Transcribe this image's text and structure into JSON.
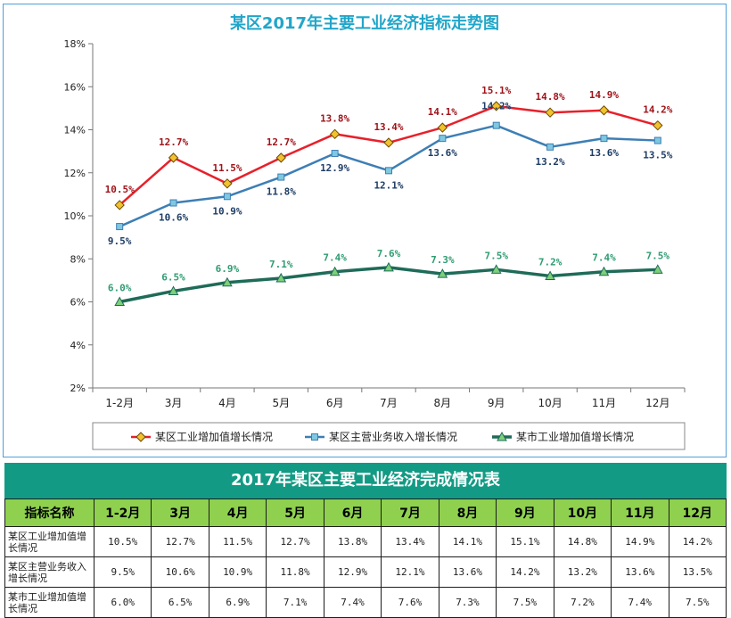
{
  "colors": {
    "industrial_district": "#e8202a",
    "business_income": "#3d7eb5",
    "industrial_city": "#1e6b58",
    "title": "#21a6c9",
    "table_title_bg": "#139a84",
    "header_bg": "#8fd14f",
    "marker_diamond": "#f2c12e"
  },
  "chart_data": {
    "type": "line",
    "title": "某区2017年主要工业经济指标走势图",
    "categories": [
      "1-2月",
      "3月",
      "4月",
      "5月",
      "6月",
      "7月",
      "8月",
      "9月",
      "10月",
      "11月",
      "12月"
    ],
    "yticks": [
      "2%",
      "4%",
      "6%",
      "8%",
      "10%",
      "12%",
      "14%",
      "16%",
      "18%"
    ],
    "ylim": [
      2,
      18
    ],
    "series": [
      {
        "name": "某区工业增加值增长情况",
        "values": [
          10.5,
          12.7,
          11.5,
          12.7,
          13.8,
          13.4,
          14.1,
          15.1,
          14.8,
          14.9,
          14.2
        ],
        "labels": [
          "10.5%",
          "12.7%",
          "11.5%",
          "12.7%",
          "13.8%",
          "13.4%",
          "14.1%",
          "15.1%",
          "14.8%",
          "14.9%",
          "14.2%"
        ],
        "marker": "diamond"
      },
      {
        "name": "某区主营业务收入增长情况",
        "values": [
          9.5,
          10.6,
          10.9,
          11.8,
          12.9,
          12.1,
          13.6,
          14.2,
          13.2,
          13.6,
          13.5
        ],
        "labels": [
          "9.5%",
          "10.6%",
          "10.9%",
          "11.8%",
          "12.9%",
          "12.1%",
          "13.6%",
          "14.2%",
          "13.2%",
          "13.6%",
          "13.5%"
        ],
        "marker": "square"
      },
      {
        "name": "某市工业增加值增长情况",
        "values": [
          6.0,
          6.5,
          6.9,
          7.1,
          7.4,
          7.6,
          7.3,
          7.5,
          7.2,
          7.4,
          7.5
        ],
        "labels": [
          "6.0%",
          "6.5%",
          "6.9%",
          "7.1%",
          "7.4%",
          "7.6%",
          "7.3%",
          "7.5%",
          "7.2%",
          "7.4%",
          "7.5%"
        ],
        "marker": "triangle"
      }
    ],
    "legend": "bottom",
    "grid": false
  },
  "table": {
    "title": "2017年某区主要工业经济完成情况表",
    "header_first": "指标名称",
    "months": [
      "1-2月",
      "3月",
      "4月",
      "5月",
      "6月",
      "7月",
      "8月",
      "9月",
      "10月",
      "11月",
      "12月"
    ],
    "rows": [
      {
        "name": "某区工业增加值增长情况",
        "values": [
          "10.5%",
          "12.7%",
          "11.5%",
          "12.7%",
          "13.8%",
          "13.4%",
          "14.1%",
          "15.1%",
          "14.8%",
          "14.9%",
          "14.2%"
        ]
      },
      {
        "name": "某区主营业务收入增长情况",
        "values": [
          "9.5%",
          "10.6%",
          "10.9%",
          "11.8%",
          "12.9%",
          "12.1%",
          "13.6%",
          "14.2%",
          "13.2%",
          "13.6%",
          "13.5%"
        ]
      },
      {
        "name": "某市工业增加值增长情况",
        "values": [
          "6.0%",
          "6.5%",
          "6.9%",
          "7.1%",
          "7.4%",
          "7.6%",
          "7.3%",
          "7.5%",
          "7.2%",
          "7.4%",
          "7.5%"
        ]
      }
    ]
  }
}
